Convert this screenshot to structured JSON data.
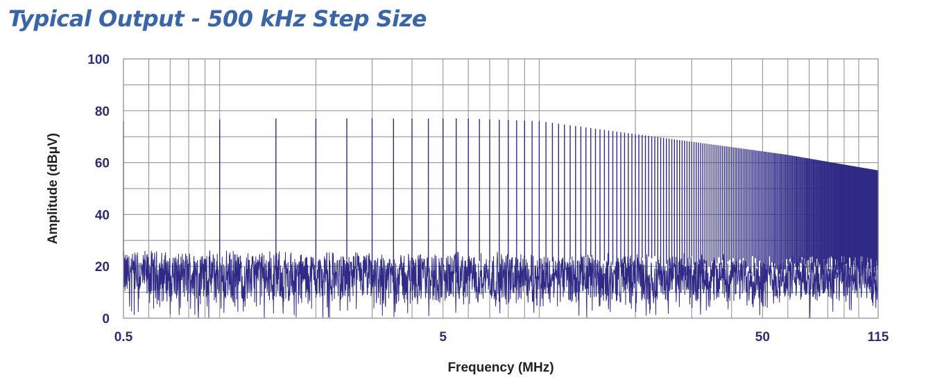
{
  "chart_data": {
    "type": "line",
    "title": "Typical Output - 500 kHz Step Size",
    "xlabel": "Frequency (MHz)",
    "ylabel": "Amplitude (dBμV)",
    "x_scale": "log",
    "xlim": [
      0.5,
      115
    ],
    "ylim": [
      0,
      100
    ],
    "x_ticks": [
      {
        "value": 0.5,
        "label": "0.5"
      },
      {
        "value": 5,
        "label": "5"
      },
      {
        "value": 50,
        "label": "50"
      },
      {
        "value": 115,
        "label": "115"
      }
    ],
    "y_ticks": [
      {
        "value": 0,
        "label": "0"
      },
      {
        "value": 20,
        "label": "20"
      },
      {
        "value": 40,
        "label": "40"
      },
      {
        "value": 60,
        "label": "60"
      },
      {
        "value": 80,
        "label": "80"
      },
      {
        "value": 100,
        "label": "100"
      }
    ],
    "grid": true,
    "step_mhz": 0.5,
    "noise_floor_dbuv": [
      5,
      25
    ],
    "peak_envelope": [
      {
        "x": 0.5,
        "y": 76
      },
      {
        "x": 1.5,
        "y": 77
      },
      {
        "x": 6.0,
        "y": 77
      },
      {
        "x": 10.0,
        "y": 76
      },
      {
        "x": 20.0,
        "y": 71
      },
      {
        "x": 40.0,
        "y": 66
      },
      {
        "x": 60.0,
        "y": 63
      },
      {
        "x": 115.0,
        "y": 57
      }
    ],
    "line_color": "#2e2a85",
    "grid_color": "#8a8a8a",
    "tick_color": "#2b2e72",
    "title_color": "#3a66a8"
  }
}
